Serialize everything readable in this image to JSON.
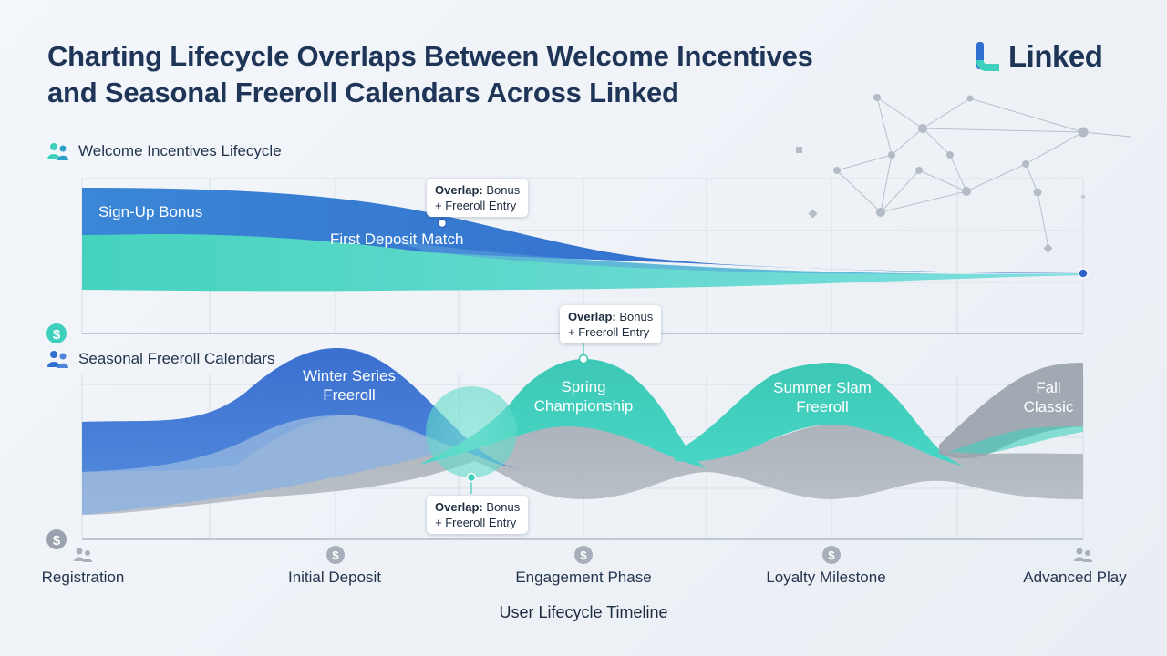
{
  "header": {
    "title_line1": "Charting Lifecycle Overlaps Between Welcome Incentives",
    "title_line2": "and Seasonal Freeroll Calendars Across Linked",
    "logo_text": "Linked"
  },
  "colors": {
    "blue": "#3b7fd0",
    "teal": "#3fd0bd",
    "gray": "#a9b0b9",
    "navy": "#1f3557"
  },
  "welcome": {
    "label": "Welcome Incentives Lifecycle",
    "icon": "people-icon",
    "streams": [
      {
        "label": "Sign-Up Bonus",
        "color": "#3b7fd0"
      },
      {
        "label": "First Deposit Match",
        "color": "#3fd0bd"
      }
    ]
  },
  "seasonal": {
    "label": "Seasonal Freeroll Calendars",
    "icon": "people-icon",
    "events": [
      {
        "label_line1": "Winter Series",
        "label_line2": "Freeroll",
        "color": "#3b7fd0"
      },
      {
        "label_line1": "Spring",
        "label_line2": "Championship",
        "color": "#3fd0bd"
      },
      {
        "label_line1": "Summer Slam",
        "label_line2": "Freeroll",
        "color": "#3fd0bd"
      },
      {
        "label_line1": "Fall",
        "label_line2": "Classic",
        "color": "#a9b0b9"
      }
    ]
  },
  "callouts": [
    {
      "bold": "Overlap:",
      "rest": " Bonus",
      "line2": "+ Freeroll Entry"
    },
    {
      "bold": "Overlap:",
      "rest": " Bonus",
      "line2": "+ Freeroll Entry"
    },
    {
      "bold": "Overlap:",
      "rest": " Bonus",
      "line2": "+ Freeroll Entry"
    }
  ],
  "axis": {
    "title": "User Lifecycle Timeline",
    "ticks": [
      {
        "label": "Registration",
        "icon": "people-icon"
      },
      {
        "label": "Initial Deposit",
        "icon": "dollar-icon"
      },
      {
        "label": "Engagement Phase",
        "icon": "dollar-icon"
      },
      {
        "label": "Loyalty Milestone",
        "icon": "dollar-icon"
      },
      {
        "label": "Advanced Play",
        "icon": "people-icon"
      }
    ]
  }
}
